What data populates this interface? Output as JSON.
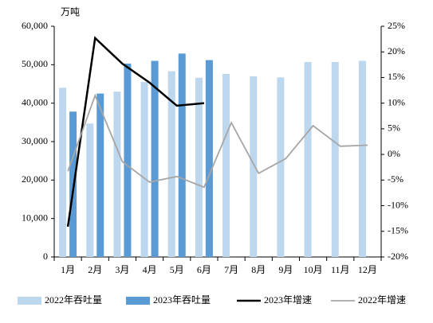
{
  "chart_data": {
    "type": "bar",
    "y_unit": "万吨",
    "categories": [
      "1月",
      "2月",
      "3月",
      "4月",
      "5月",
      "6月",
      "7月",
      "8月",
      "9月",
      "10月",
      "11月",
      "12月"
    ],
    "series": [
      {
        "name": "2022年吞吐量",
        "type": "bar",
        "color": "#bdd7ee",
        "values": [
          44000,
          34700,
          43000,
          45500,
          48300,
          46600,
          47600,
          47000,
          46700,
          50700,
          50700,
          51000
        ]
      },
      {
        "name": "2023年吞吐量",
        "type": "bar",
        "color": "#5b9bd5",
        "values": [
          37800,
          42500,
          50300,
          51000,
          52900,
          51200,
          null,
          null,
          null,
          null,
          null,
          null
        ]
      },
      {
        "name": "2023年增速",
        "type": "line",
        "axis": "y2",
        "color": "#000000",
        "values": [
          -14.1,
          22.7,
          17.7,
          14,
          9.5,
          10,
          null,
          null,
          null,
          null,
          null,
          null
        ]
      },
      {
        "name": "2022年增速",
        "type": "line",
        "axis": "y2",
        "color": "#a6a6a6",
        "values": [
          -3.3,
          11.5,
          -1.4,
          -5.4,
          -4.3,
          -6.4,
          6.2,
          -3.7,
          -0.8,
          5.6,
          1.6,
          1.8
        ]
      }
    ],
    "ylim": [
      0,
      60000
    ],
    "yticks": [
      0,
      {
        "value": 10000,
        "label": "10,000"
      },
      {
        "value": 20000,
        "label": "20,000"
      },
      {
        "value": 30000,
        "label": "30,000"
      },
      {
        "value": 40000,
        "label": "40,000"
      },
      {
        "value": 50000,
        "label": "50,000"
      },
      {
        "value": 60000,
        "label": "60,000"
      }
    ],
    "y2lim": [
      -20,
      25
    ],
    "y2ticks": [
      {
        "value": -20,
        "label": "-20%"
      },
      {
        "value": -15,
        "label": "-15%"
      },
      {
        "value": -10,
        "label": "-10%"
      },
      {
        "value": -5,
        "label": "-5%"
      },
      {
        "value": 0,
        "label": "0%"
      },
      {
        "value": 5,
        "label": "5%"
      },
      {
        "value": 10,
        "label": "10%"
      },
      {
        "value": 15,
        "label": "15%"
      },
      {
        "value": 20,
        "label": "20%"
      },
      {
        "value": 25,
        "label": "25%"
      }
    ],
    "grid": false,
    "legend": "bottom"
  }
}
